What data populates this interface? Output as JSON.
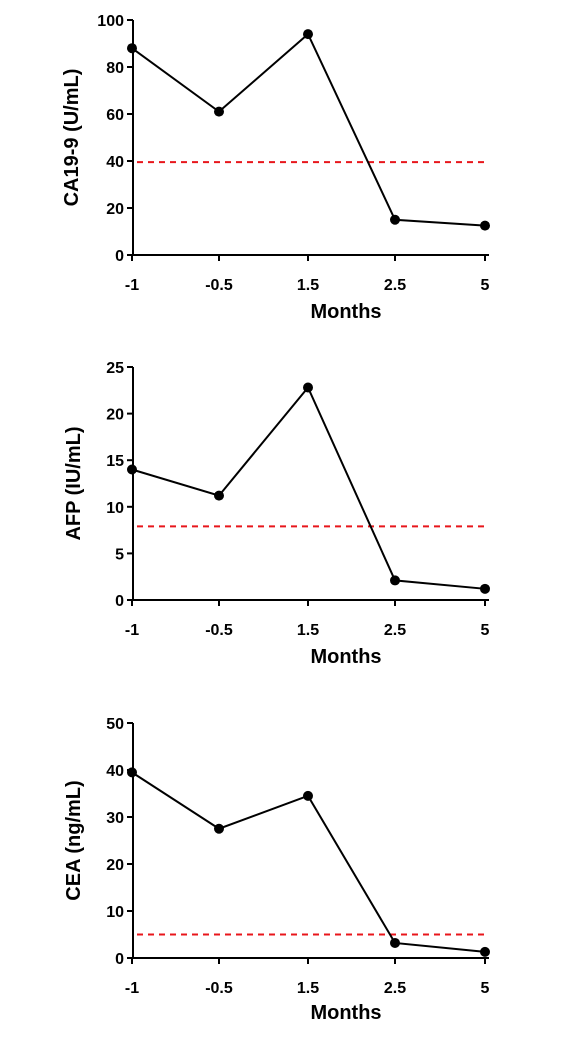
{
  "chart_data": [
    {
      "type": "line",
      "categories": [
        "-1",
        "-0.5",
        "1.5",
        "2.5",
        "5"
      ],
      "series": [
        {
          "values": [
            88,
            61,
            94,
            15,
            12.5
          ]
        }
      ],
      "reference_line": {
        "value": 39.5,
        "color": "#e8161b",
        "style": "dashed"
      },
      "xlabel": "Months",
      "ylabel": "CA19-9 (U/mL)",
      "ylim": [
        0,
        100
      ],
      "yticks": [
        0,
        20,
        40,
        60,
        80,
        100
      ],
      "grid": false,
      "legend": "none"
    },
    {
      "type": "line",
      "categories": [
        "-1",
        "-0.5",
        "1.5",
        "2.5",
        "5"
      ],
      "series": [
        {
          "values": [
            14,
            11.2,
            22.8,
            2.1,
            1.2
          ]
        }
      ],
      "reference_line": {
        "value": 7.9,
        "color": "#e8161b",
        "style": "dashed"
      },
      "xlabel": "Months",
      "ylabel": "AFP (IU/mL)",
      "ylim": [
        0,
        25
      ],
      "yticks": [
        0,
        5,
        10,
        15,
        20,
        25
      ],
      "grid": false,
      "legend": "none"
    },
    {
      "type": "line",
      "categories": [
        "-1",
        "-0.5",
        "1.5",
        "2.5",
        "5"
      ],
      "series": [
        {
          "values": [
            39.5,
            27.5,
            34.5,
            3.2,
            1.3
          ]
        }
      ],
      "reference_line": {
        "value": 5,
        "color": "#e8161b",
        "style": "dashed"
      },
      "xlabel": "Months",
      "ylabel": "CEA (ng/mL)",
      "ylim": [
        0,
        50
      ],
      "yticks": [
        0,
        10,
        20,
        30,
        40,
        50
      ],
      "grid": false,
      "legend": "none"
    }
  ]
}
